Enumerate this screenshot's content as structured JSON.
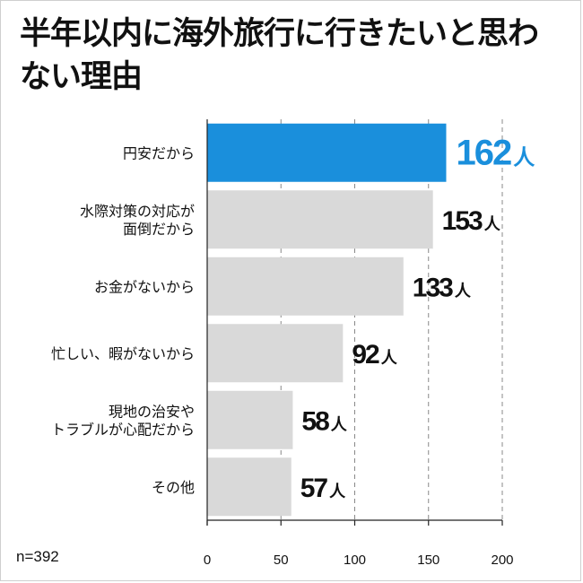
{
  "title": "半年以内に海外旅行に行きたいと思わない理由",
  "note": "n=392",
  "colors": {
    "highlight": "#1a8fdc",
    "bar": "#d9d9d9",
    "grid": "#888888",
    "text": "#111111"
  },
  "chart_data": {
    "type": "bar",
    "orientation": "horizontal",
    "categories": [
      "円安だから",
      "水際対策の対応が面倒だから",
      "お金がないから",
      "忙しい、暇がないから",
      "現地の治安やトラブルが心配だから",
      "その他"
    ],
    "category_lines": [
      [
        "円安だから"
      ],
      [
        "水際対策の対応が",
        "面倒だから"
      ],
      [
        "お金がないから"
      ],
      [
        "忙しい、暇がないから"
      ],
      [
        "現地の治安や",
        "トラブルが心配だから"
      ],
      [
        "その他"
      ]
    ],
    "values": [
      162,
      153,
      133,
      92,
      58,
      57
    ],
    "value_unit": "人",
    "highlight_index": 0,
    "xticks": [
      0,
      50,
      100,
      150,
      200
    ],
    "xlim": [
      0,
      200
    ],
    "grid": true
  }
}
